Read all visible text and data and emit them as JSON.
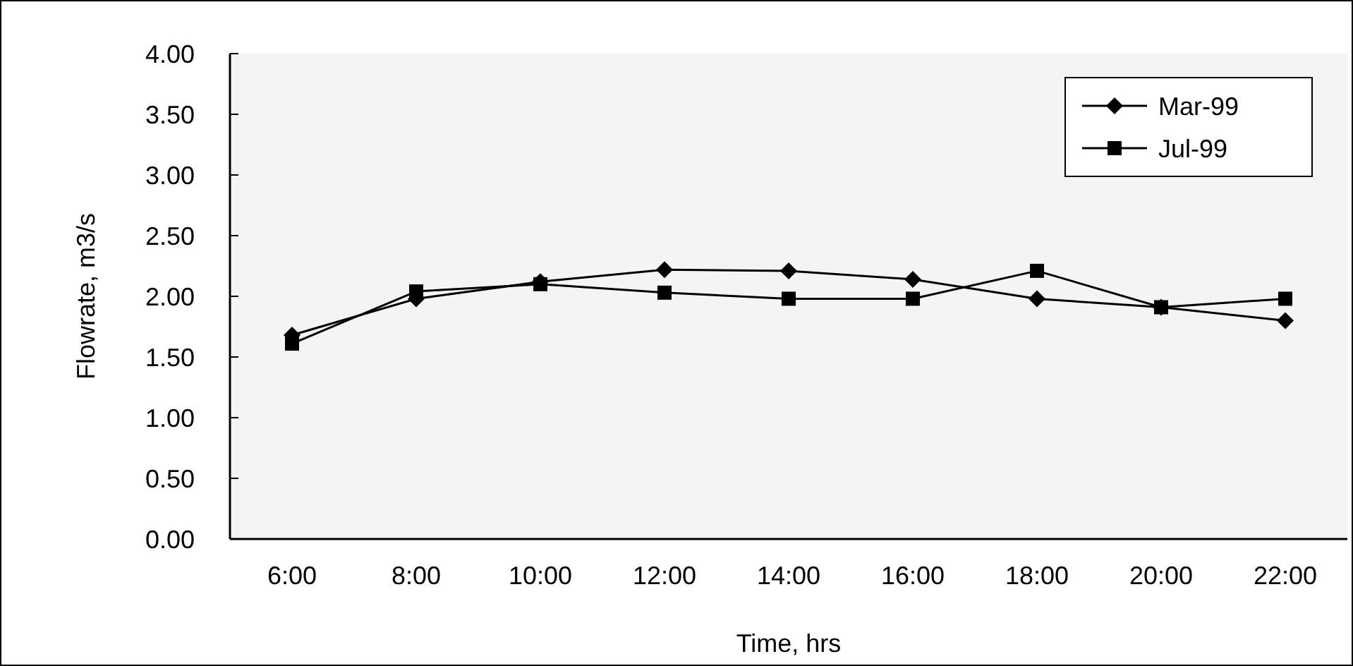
{
  "chart_data": {
    "type": "line",
    "xlabel": "Time, hrs",
    "ylabel": "Flowrate, m3/s",
    "categories": [
      "6:00",
      "8:00",
      "10:00",
      "12:00",
      "14:00",
      "16:00",
      "18:00",
      "20:00",
      "22:00"
    ],
    "series": [
      {
        "name": "Mar-99",
        "color": "#000000",
        "marker": "diamond",
        "values": [
          1.68,
          1.98,
          2.12,
          2.22,
          2.21,
          2.14,
          1.98,
          1.91,
          1.8
        ]
      },
      {
        "name": "Jul-99",
        "color": "#000000",
        "marker": "square",
        "values": [
          1.61,
          2.04,
          2.1,
          2.03,
          1.98,
          1.98,
          2.21,
          1.91,
          1.98
        ]
      }
    ],
    "ylim": [
      0,
      4
    ],
    "yticks": [
      {
        "value": 0,
        "label": "0.00"
      },
      {
        "value": 0.5,
        "label": "0.50"
      },
      {
        "value": 1,
        "label": "1.00"
      },
      {
        "value": 1.5,
        "label": "1.50"
      },
      {
        "value": 2,
        "label": "2.00"
      },
      {
        "value": 2.5,
        "label": "2.50"
      },
      {
        "value": 3,
        "label": "3.00"
      },
      {
        "value": 3.5,
        "label": "3.50"
      },
      {
        "value": 4,
        "label": "4.00"
      }
    ],
    "grid": false,
    "legend": "top right",
    "line_style": "solid"
  }
}
